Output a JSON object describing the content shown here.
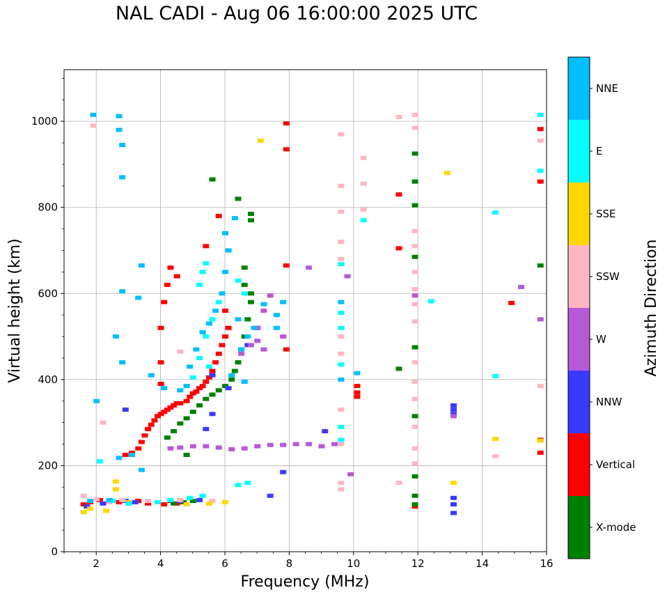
{
  "chart_data": {
    "type": "scatter",
    "title": "NAL CADI - Aug 06 16:00:00 2025 UTC",
    "xlabel": "Frequency (MHz)",
    "ylabel": "Virtual height (km)",
    "xlim": [
      1,
      16
    ],
    "ylim": [
      0,
      1120
    ],
    "xticks": [
      2,
      4,
      6,
      8,
      10,
      12,
      14,
      16
    ],
    "yticks": [
      0,
      200,
      400,
      600,
      800,
      1000
    ],
    "grid": true,
    "colorbar": {
      "label": "Azimuth Direction",
      "categories": [
        {
          "name": "X-mode",
          "color": "#008000"
        },
        {
          "name": "Vertical",
          "color": "#ff0000"
        },
        {
          "name": "NNW",
          "color": "#3a3aff"
        },
        {
          "name": "W",
          "color": "#b659d6"
        },
        {
          "name": "SSW",
          "color": "#ffb6c1"
        },
        {
          "name": "SSE",
          "color": "#ffd700"
        },
        {
          "name": "E",
          "color": "#00ffff"
        },
        {
          "name": "NNE",
          "color": "#00bfff"
        }
      ]
    },
    "series": [
      {
        "name": "Vertical",
        "points": [
          [
            1.6,
            110
          ],
          [
            1.8,
            115
          ],
          [
            2.1,
            120
          ],
          [
            2.4,
            118
          ],
          [
            2.7,
            115
          ],
          [
            3.0,
            112
          ],
          [
            3.3,
            118
          ],
          [
            3.6,
            112
          ],
          [
            3.9,
            115
          ],
          [
            4.1,
            110
          ],
          [
            4.3,
            118
          ],
          [
            4.5,
            112
          ],
          [
            2.9,
            225
          ],
          [
            3.1,
            230
          ],
          [
            3.3,
            240
          ],
          [
            3.4,
            255
          ],
          [
            3.5,
            270
          ],
          [
            3.6,
            285
          ],
          [
            3.7,
            295
          ],
          [
            3.8,
            305
          ],
          [
            3.9,
            315
          ],
          [
            4.0,
            320
          ],
          [
            4.1,
            325
          ],
          [
            4.2,
            330
          ],
          [
            4.3,
            335
          ],
          [
            4.4,
            340
          ],
          [
            4.5,
            345
          ],
          [
            4.6,
            345
          ],
          [
            4.8,
            350
          ],
          [
            4.9,
            360
          ],
          [
            5.0,
            368
          ],
          [
            5.1,
            372
          ],
          [
            5.2,
            380
          ],
          [
            5.3,
            385
          ],
          [
            5.4,
            395
          ],
          [
            5.5,
            405
          ],
          [
            5.6,
            420
          ],
          [
            5.7,
            440
          ],
          [
            5.8,
            460
          ],
          [
            5.9,
            480
          ],
          [
            6.0,
            500
          ],
          [
            6.1,
            520
          ],
          [
            6.0,
            560
          ],
          [
            4.0,
            390
          ],
          [
            4.0,
            440
          ],
          [
            4.0,
            520
          ],
          [
            4.1,
            580
          ],
          [
            4.2,
            620
          ],
          [
            4.3,
            660
          ],
          [
            4.5,
            640
          ],
          [
            5.4,
            710
          ],
          [
            5.8,
            780
          ],
          [
            10.1,
            360
          ],
          [
            10.1,
            370
          ],
          [
            10.1,
            385
          ],
          [
            11.4,
            705
          ],
          [
            11.4,
            830
          ],
          [
            11.9,
            105
          ],
          [
            14.9,
            578
          ],
          [
            15.8,
            230
          ],
          [
            15.8,
            260
          ],
          [
            15.8,
            860
          ],
          [
            15.8,
            982
          ],
          [
            7.9,
            935
          ],
          [
            7.9,
            995
          ],
          [
            7.9,
            665
          ],
          [
            7.9,
            470
          ]
        ]
      },
      {
        "name": "X-mode",
        "points": [
          [
            4.4,
            112
          ],
          [
            4.7,
            115
          ],
          [
            5.0,
            118
          ],
          [
            4.2,
            265
          ],
          [
            4.4,
            280
          ],
          [
            4.6,
            298
          ],
          [
            4.8,
            310
          ],
          [
            5.0,
            325
          ],
          [
            5.2,
            340
          ],
          [
            5.4,
            355
          ],
          [
            5.6,
            365
          ],
          [
            5.8,
            375
          ],
          [
            6.0,
            385
          ],
          [
            6.2,
            400
          ],
          [
            6.3,
            420
          ],
          [
            6.4,
            440
          ],
          [
            6.5,
            470
          ],
          [
            6.6,
            500
          ],
          [
            6.7,
            540
          ],
          [
            6.8,
            580
          ],
          [
            6.8,
            600
          ],
          [
            6.6,
            620
          ],
          [
            6.6,
            660
          ],
          [
            6.4,
            820
          ],
          [
            6.8,
            770
          ],
          [
            6.8,
            785
          ],
          [
            11.4,
            425
          ],
          [
            11.9,
            110
          ],
          [
            11.9,
            130
          ],
          [
            11.9,
            175
          ],
          [
            11.9,
            315
          ],
          [
            11.9,
            475
          ],
          [
            11.9,
            685
          ],
          [
            11.9,
            805
          ],
          [
            11.9,
            860
          ],
          [
            11.9,
            925
          ],
          [
            15.8,
            665
          ],
          [
            4.8,
            225
          ],
          [
            5.6,
            865
          ]
        ]
      },
      {
        "name": "NNW",
        "points": [
          [
            1.7,
            105
          ],
          [
            2.2,
            112
          ],
          [
            2.9,
            118
          ],
          [
            3.2,
            115
          ],
          [
            4.6,
            118
          ],
          [
            5.2,
            120
          ],
          [
            5.4,
            285
          ],
          [
            5.6,
            320
          ],
          [
            6.1,
            380
          ],
          [
            6.7,
            480
          ],
          [
            7.0,
            520
          ],
          [
            7.4,
            130
          ],
          [
            7.8,
            185
          ],
          [
            9.1,
            280
          ],
          [
            13.1,
            90
          ],
          [
            13.1,
            110
          ],
          [
            13.1,
            125
          ],
          [
            13.1,
            320
          ],
          [
            13.1,
            330
          ],
          [
            13.1,
            340
          ],
          [
            5.6,
            410
          ],
          [
            2.9,
            330
          ]
        ]
      },
      {
        "name": "W",
        "points": [
          [
            4.3,
            240
          ],
          [
            4.6,
            242
          ],
          [
            5.0,
            245
          ],
          [
            5.4,
            245
          ],
          [
            5.8,
            242
          ],
          [
            6.2,
            238
          ],
          [
            6.6,
            240
          ],
          [
            7.0,
            245
          ],
          [
            7.4,
            248
          ],
          [
            7.8,
            248
          ],
          [
            8.2,
            250
          ],
          [
            8.6,
            250
          ],
          [
            9.0,
            245
          ],
          [
            9.4,
            250
          ],
          [
            9.9,
            180
          ],
          [
            6.5,
            460
          ],
          [
            6.8,
            480
          ],
          [
            7.0,
            490
          ],
          [
            7.2,
            470
          ],
          [
            7.0,
            520
          ],
          [
            7.2,
            560
          ],
          [
            7.4,
            595
          ],
          [
            8.6,
            660
          ],
          [
            9.8,
            640
          ],
          [
            13.1,
            315
          ],
          [
            15.2,
            615
          ],
          [
            15.8,
            540
          ],
          [
            11.9,
            595
          ],
          [
            7.8,
            500
          ]
        ]
      },
      {
        "name": "SSW",
        "points": [
          [
            1.6,
            130
          ],
          [
            2.0,
            122
          ],
          [
            2.4,
            115
          ],
          [
            2.8,
            120
          ],
          [
            3.6,
            118
          ],
          [
            4.6,
            120
          ],
          [
            5.6,
            118
          ],
          [
            9.6,
            145
          ],
          [
            9.6,
            160
          ],
          [
            9.6,
            250
          ],
          [
            9.6,
            330
          ],
          [
            9.6,
            460
          ],
          [
            9.6,
            500
          ],
          [
            9.6,
            680
          ],
          [
            9.6,
            720
          ],
          [
            9.6,
            790
          ],
          [
            9.6,
            850
          ],
          [
            9.6,
            970
          ],
          [
            10.3,
            795
          ],
          [
            10.3,
            855
          ],
          [
            10.3,
            915
          ],
          [
            11.4,
            160
          ],
          [
            11.4,
            1010
          ],
          [
            11.9,
            205
          ],
          [
            11.9,
            240
          ],
          [
            11.9,
            290
          ],
          [
            11.9,
            355
          ],
          [
            11.9,
            395
          ],
          [
            11.9,
            440
          ],
          [
            11.9,
            535
          ],
          [
            11.9,
            575
          ],
          [
            11.9,
            610
          ],
          [
            11.9,
            650
          ],
          [
            11.9,
            710
          ],
          [
            11.9,
            745
          ],
          [
            11.9,
            985
          ],
          [
            11.9,
            1015
          ],
          [
            14.4,
            222
          ],
          [
            15.8,
            385
          ],
          [
            15.8,
            955
          ],
          [
            4.6,
            465
          ],
          [
            1.9,
            990
          ],
          [
            2.2,
            300
          ]
        ]
      },
      {
        "name": "SSE",
        "points": [
          [
            1.6,
            92
          ],
          [
            1.8,
            100
          ],
          [
            2.3,
            95
          ],
          [
            2.6,
            145
          ],
          [
            3.0,
            115
          ],
          [
            4.8,
            110
          ],
          [
            5.5,
            112
          ],
          [
            6.0,
            115
          ],
          [
            7.1,
            955
          ],
          [
            12.9,
            880
          ],
          [
            13.1,
            160
          ],
          [
            14.4,
            262
          ],
          [
            15.8,
            258
          ],
          [
            2.6,
            163
          ]
        ]
      },
      {
        "name": "E",
        "points": [
          [
            2.1,
            210
          ],
          [
            2.5,
            118
          ],
          [
            3.0,
            112
          ],
          [
            3.9,
            115
          ],
          [
            4.3,
            120
          ],
          [
            4.9,
            125
          ],
          [
            5.3,
            130
          ],
          [
            5.0,
            405
          ],
          [
            5.2,
            450
          ],
          [
            5.4,
            500
          ],
          [
            5.6,
            540
          ],
          [
            5.8,
            580
          ],
          [
            5.5,
            430
          ],
          [
            5.2,
            620
          ],
          [
            5.3,
            650
          ],
          [
            5.4,
            670
          ],
          [
            6.4,
            155
          ],
          [
            6.7,
            160
          ],
          [
            6.6,
            600
          ],
          [
            6.4,
            630
          ],
          [
            9.6,
            260
          ],
          [
            9.6,
            290
          ],
          [
            9.6,
            435
          ],
          [
            9.6,
            520
          ],
          [
            9.6,
            555
          ],
          [
            9.6,
            668
          ],
          [
            10.3,
            770
          ],
          [
            14.4,
            408
          ],
          [
            14.4,
            788
          ],
          [
            15.8,
            885
          ],
          [
            15.8,
            1015
          ],
          [
            12.4,
            582
          ]
        ]
      },
      {
        "name": "NNE",
        "points": [
          [
            1.8,
            118
          ],
          [
            2.4,
            120
          ],
          [
            2.7,
            218
          ],
          [
            3.1,
            225
          ],
          [
            3.4,
            190
          ],
          [
            3.4,
            665
          ],
          [
            3.7,
            410
          ],
          [
            4.1,
            380
          ],
          [
            4.6,
            375
          ],
          [
            4.8,
            385
          ],
          [
            4.9,
            430
          ],
          [
            5.1,
            470
          ],
          [
            5.3,
            510
          ],
          [
            5.5,
            530
          ],
          [
            5.7,
            560
          ],
          [
            5.9,
            600
          ],
          [
            6.0,
            650
          ],
          [
            6.1,
            700
          ],
          [
            6.0,
            740
          ],
          [
            6.3,
            775
          ],
          [
            6.5,
            470
          ],
          [
            6.7,
            500
          ],
          [
            6.4,
            540
          ],
          [
            6.9,
            520
          ],
          [
            7.2,
            575
          ],
          [
            7.6,
            520
          ],
          [
            7.6,
            550
          ],
          [
            7.8,
            580
          ],
          [
            9.6,
            400
          ],
          [
            9.6,
            580
          ],
          [
            10.1,
            415
          ],
          [
            2.7,
            980
          ],
          [
            2.7,
            1012
          ],
          [
            1.9,
            1015
          ],
          [
            2.8,
            945
          ],
          [
            2.8,
            870
          ],
          [
            2.8,
            605
          ],
          [
            2.8,
            440
          ],
          [
            3.3,
            590
          ],
          [
            2.0,
            350
          ],
          [
            2.6,
            500
          ],
          [
            6.6,
            395
          ],
          [
            6.2,
            410
          ]
        ]
      }
    ]
  }
}
